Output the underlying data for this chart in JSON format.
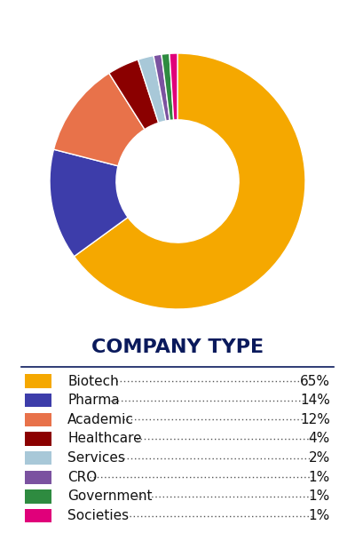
{
  "title": "COMPANY TYPE",
  "categories": [
    "Biotech",
    "Pharma",
    "Academic",
    "Healthcare",
    "Services",
    "CRO",
    "Government",
    "Societies"
  ],
  "values": [
    65,
    14,
    12,
    4,
    2,
    1,
    1,
    1
  ],
  "colors": [
    "#F5A800",
    "#3D3DAA",
    "#E8724A",
    "#8B0000",
    "#A8C8D8",
    "#7B52A0",
    "#2E8B40",
    "#E0007A"
  ],
  "legend_labels": [
    "Biotech",
    "Pharma",
    "Academic",
    "Healthcare",
    "Services",
    "CRO",
    "Government",
    "Societies"
  ],
  "legend_pcts": [
    "65%",
    "14%",
    "12%",
    "4%",
    "2%",
    "1%",
    "1%",
    "1%"
  ],
  "title_color": "#0A1A5C",
  "title_fontsize": 16,
  "legend_fontsize": 11,
  "background_color": "#ffffff"
}
